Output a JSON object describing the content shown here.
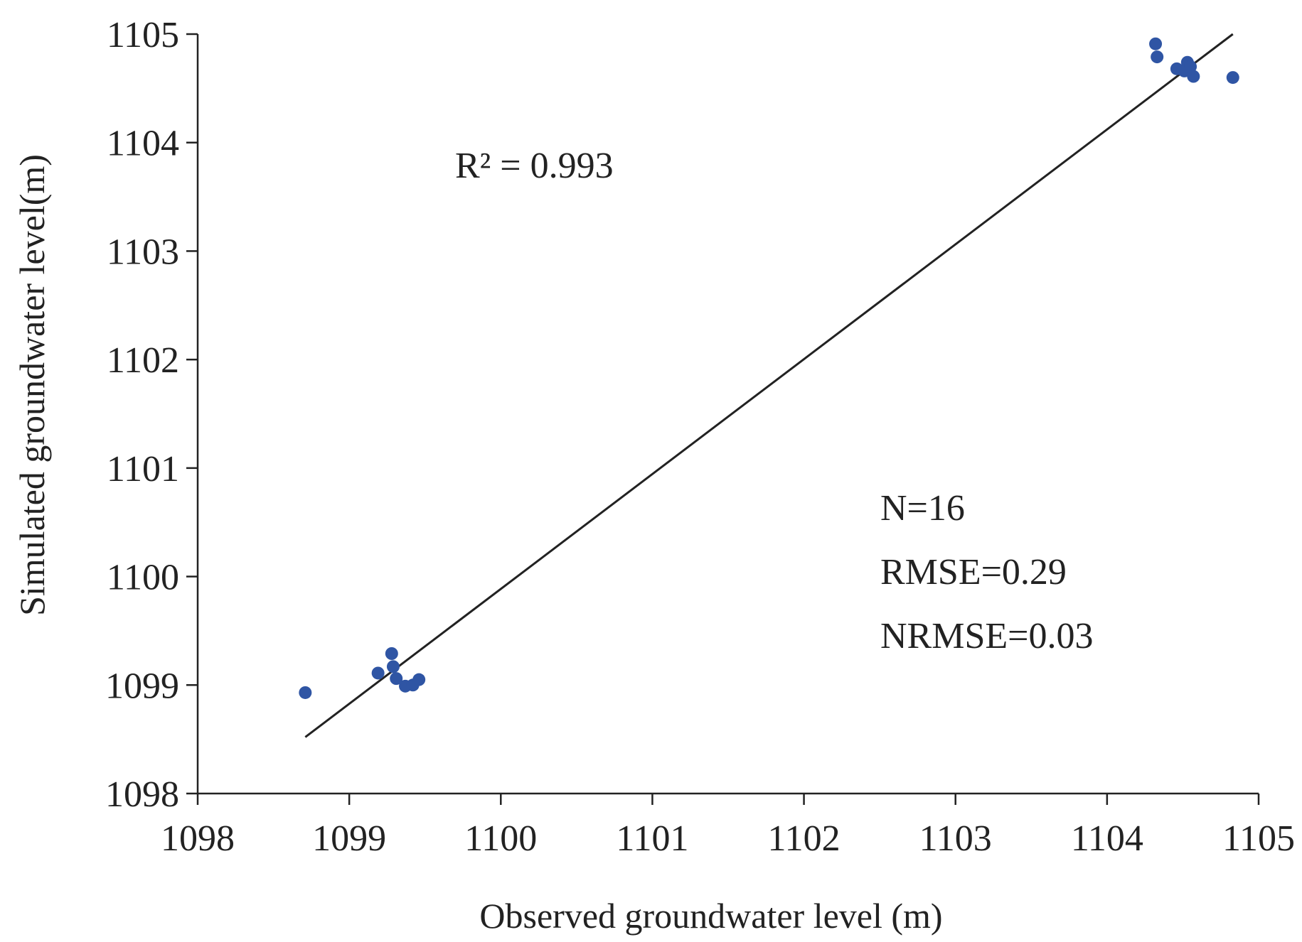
{
  "chart_data": {
    "type": "scatter",
    "title": "",
    "xlabel": "Observed groundwater level (m)",
    "ylabel": "Simulated groundwater level(m)",
    "xlim": [
      1098,
      1105
    ],
    "ylim": [
      1098,
      1105
    ],
    "xticks": [
      1098,
      1099,
      1100,
      1101,
      1102,
      1103,
      1104,
      1105
    ],
    "yticks": [
      1098,
      1099,
      1100,
      1101,
      1102,
      1103,
      1104,
      1105
    ],
    "grid": false,
    "legend": "none",
    "marker_color": "#2f55a4",
    "line_color": "#222222",
    "series": [
      {
        "points": [
          {
            "x": 1098.71,
            "y": 1098.93
          },
          {
            "x": 1099.19,
            "y": 1099.11
          },
          {
            "x": 1099.28,
            "y": 1099.29
          },
          {
            "x": 1099.29,
            "y": 1099.17
          },
          {
            "x": 1099.31,
            "y": 1099.06
          },
          {
            "x": 1099.37,
            "y": 1098.99
          },
          {
            "x": 1099.42,
            "y": 1099.0
          },
          {
            "x": 1099.46,
            "y": 1099.05
          },
          {
            "x": 1104.32,
            "y": 1104.91
          },
          {
            "x": 1104.33,
            "y": 1104.79
          },
          {
            "x": 1104.46,
            "y": 1104.68
          },
          {
            "x": 1104.51,
            "y": 1104.66
          },
          {
            "x": 1104.53,
            "y": 1104.74
          },
          {
            "x": 1104.55,
            "y": 1104.7
          },
          {
            "x": 1104.57,
            "y": 1104.61
          },
          {
            "x": 1104.83,
            "y": 1104.6
          }
        ]
      }
    ],
    "fit_line": {
      "x": [
        1098.71,
        1104.83
      ],
      "y": [
        1098.52,
        1105.0
      ]
    },
    "annotations": {
      "r2": "R² = 0.993",
      "n": "N=16",
      "rmse": "RMSE=0.29",
      "nrmse": "NRMSE=0.03"
    }
  }
}
